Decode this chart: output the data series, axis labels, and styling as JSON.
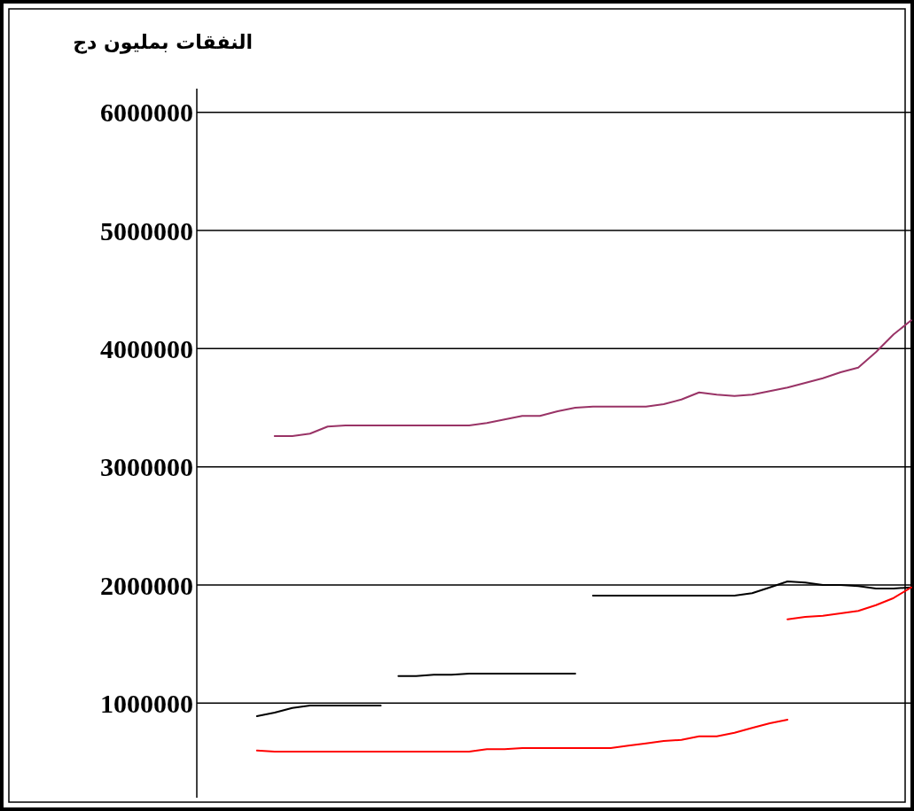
{
  "chart_data": {
    "type": "line",
    "title": "النفقات بمليون دج",
    "categories": [
      null,
      null,
      null,
      null,
      null,
      null,
      null,
      null,
      null,
      null,
      null,
      null,
      null,
      null,
      null,
      null,
      null,
      null,
      null,
      null,
      null,
      null,
      null,
      null,
      null,
      null,
      null,
      null,
      null,
      null,
      null,
      null,
      null,
      null,
      null,
      null,
      null,
      null
    ],
    "series": [
      {
        "color": "#993366",
        "values": [
          null,
          3260000,
          3260000,
          3280000,
          3340000,
          3350000,
          3350000,
          3350000,
          3350000,
          3350000,
          3350000,
          3350000,
          3350000,
          3370000,
          3400000,
          3430000,
          3430000,
          3470000,
          3500000,
          3510000,
          3510000,
          3510000,
          3510000,
          3530000,
          3570000,
          3630000,
          3610000,
          3600000,
          3610000,
          3640000,
          3670000,
          3710000,
          3750000,
          3800000,
          3840000,
          3970000,
          4120000,
          4240000
        ]
      },
      {
        "color": "#000000",
        "values": [
          890000,
          920000,
          960000,
          980000,
          980000,
          980000,
          980000,
          980000,
          null,
          null,
          null,
          null,
          null,
          null,
          null,
          null,
          null,
          null,
          null,
          null,
          null,
          null,
          null,
          null,
          null,
          null,
          null,
          null,
          null,
          null,
          null,
          null,
          null,
          null,
          null,
          null,
          null,
          null
        ]
      },
      {
        "color": "#000000",
        "values": [
          null,
          null,
          null,
          null,
          null,
          null,
          null,
          null,
          1230000,
          1230000,
          1240000,
          1240000,
          1250000,
          1250000,
          1250000,
          1250000,
          1250000,
          1250000,
          1250000,
          null,
          null,
          null,
          null,
          null,
          null,
          null,
          null,
          null,
          null,
          null,
          null,
          null,
          null,
          null,
          null,
          null,
          null,
          null
        ]
      },
      {
        "color": "#000000",
        "values": [
          null,
          null,
          null,
          null,
          null,
          null,
          null,
          null,
          null,
          null,
          null,
          null,
          null,
          null,
          null,
          null,
          null,
          null,
          null,
          1910000,
          1910000,
          1910000,
          1910000,
          1910000,
          1910000,
          1910000,
          1910000,
          1910000,
          1930000,
          1980000,
          2030000,
          2020000,
          2000000,
          2000000,
          1990000,
          1970000,
          1970000,
          1980000
        ]
      },
      {
        "color": "#ff0000",
        "values": [
          600000,
          590000,
          590000,
          590000,
          590000,
          590000,
          590000,
          590000,
          590000,
          590000,
          590000,
          590000,
          590000,
          610000,
          610000,
          620000,
          620000,
          620000,
          620000,
          620000,
          620000,
          640000,
          660000,
          680000,
          690000,
          720000,
          720000,
          750000,
          790000,
          830000,
          860000,
          null,
          null,
          null,
          null,
          null,
          null,
          null
        ]
      },
      {
        "color": "#ff0000",
        "values": [
          null,
          null,
          null,
          null,
          null,
          null,
          null,
          null,
          null,
          null,
          null,
          null,
          null,
          null,
          null,
          null,
          null,
          null,
          null,
          null,
          null,
          null,
          null,
          null,
          null,
          null,
          null,
          null,
          null,
          null,
          1710000,
          1730000,
          1740000,
          1760000,
          1780000,
          1830000,
          1890000,
          1980000
        ]
      }
    ],
    "ylim": [
      200000,
      6200000
    ],
    "yticks": [
      1000000,
      2000000,
      3000000,
      4000000,
      5000000,
      6000000
    ],
    "grid": "y",
    "tick_labels": "y"
  }
}
